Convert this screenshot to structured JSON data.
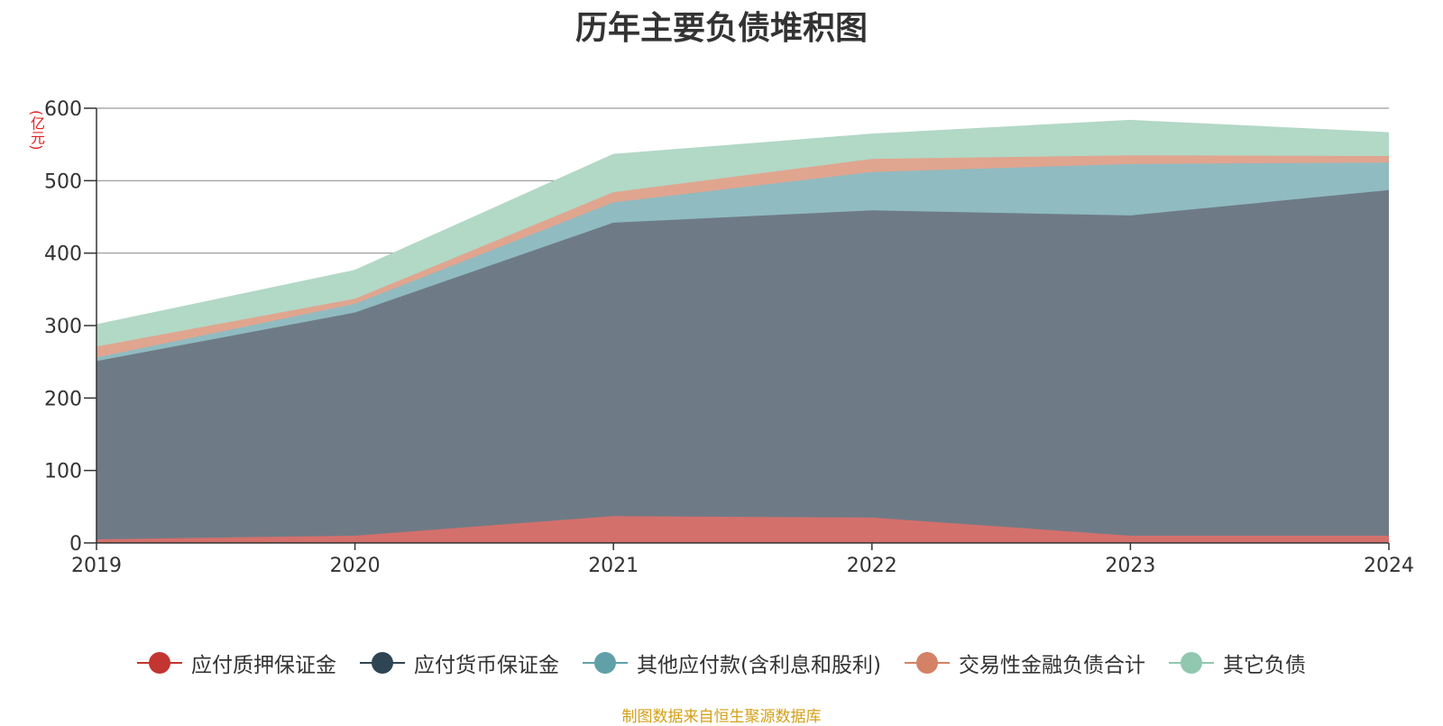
{
  "title": "历年主要负债堆积图",
  "unit": "(亿元)",
  "source": "制图数据来自恒生聚源数据库",
  "chart_data": {
    "type": "area",
    "stacked": true,
    "x": [
      "2019",
      "2020",
      "2021",
      "2022",
      "2023",
      "2024"
    ],
    "ylim": [
      0,
      600
    ],
    "yticks": [
      0,
      100,
      200,
      300,
      400,
      500,
      600
    ],
    "grid": true,
    "legend_position": "bottom",
    "series": [
      {
        "name": "应付质押保证金",
        "color": "#c23531",
        "fill": "#d4706c",
        "values": [
          5,
          10,
          37,
          35,
          10,
          10
        ]
      },
      {
        "name": "应付货币保证金",
        "color": "#2f4554",
        "fill": "#6e7b86",
        "values": [
          246,
          308,
          405,
          424,
          442,
          477
        ]
      },
      {
        "name": "其他应付款(含利息和股利)",
        "color": "#61a0a8",
        "fill": "#90bbc1",
        "values": [
          5,
          12,
          28,
          53,
          71,
          38
        ]
      },
      {
        "name": "交易性金融负债合计",
        "color": "#d48265",
        "fill": "#e0a58f",
        "values": [
          15,
          7,
          14,
          18,
          12,
          9
        ]
      },
      {
        "name": "其它负债",
        "color": "#91c7ae",
        "fill": "#b2d8c6",
        "values": [
          30,
          39,
          52,
          34,
          48,
          32
        ]
      }
    ]
  }
}
